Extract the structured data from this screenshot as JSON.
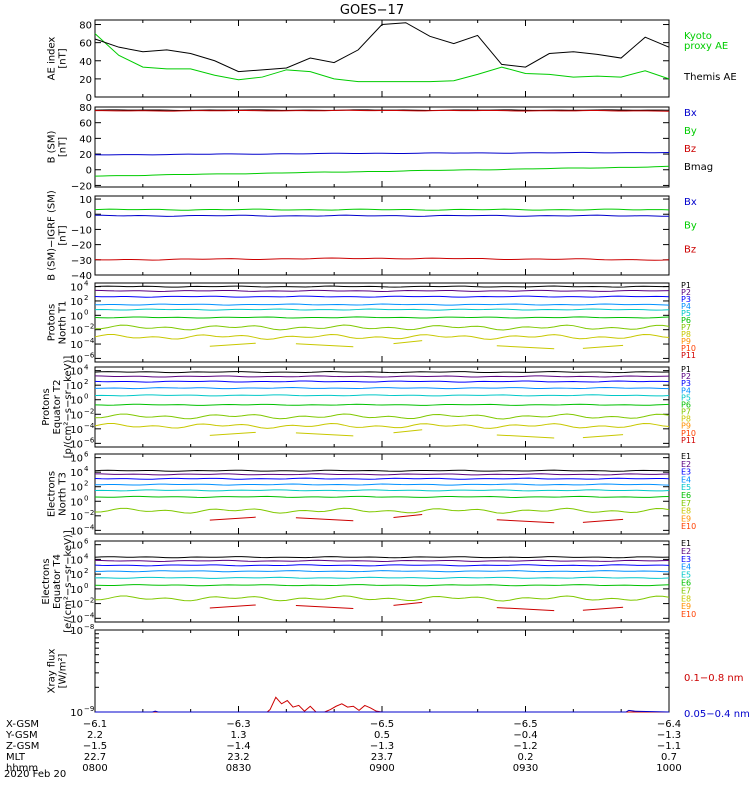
{
  "title": "GOES−17",
  "date_label": "2020 Feb 20",
  "ephemeris": {
    "row_labels": [
      "X-GSM",
      "Y-GSM",
      "Z-GSM",
      "MLT",
      "hhmm"
    ],
    "columns": [
      [
        "−6.1",
        "2.2",
        "−1.5",
        "22.7",
        "0800"
      ],
      [
        "−6.3",
        "1.3",
        "−1.4",
        "23.2",
        "0830"
      ],
      [
        "−6.5",
        "0.5",
        "−1.3",
        "23.7",
        "0900"
      ],
      [
        "−6.5",
        "−0.4",
        "−1.2",
        "0.2",
        "0930"
      ],
      [
        "−6.4",
        "−1.3",
        "−1.1",
        "0.7",
        "1000"
      ]
    ]
  },
  "colors": {
    "black": "#000000",
    "green": "#00cc00",
    "blue": "#0000cc",
    "red": "#cc0000",
    "ch": [
      "#000000",
      "#5a0080",
      "#0000ff",
      "#0090ff",
      "#00c8c8",
      "#00c000",
      "#80c800",
      "#c8c800",
      "#ff9000",
      "#ff4000",
      "#d00000"
    ]
  },
  "chart_data": [
    {
      "type": "line",
      "id": "ae",
      "ylabel": [
        "AE index",
        "[nT]"
      ],
      "yticks": [
        "0",
        "20",
        "40",
        "60",
        "80"
      ],
      "ylim": [
        0,
        85
      ],
      "legend": [
        {
          "label": "Kyoto",
          "color": "#00cc00"
        },
        {
          "label": "proxy AE",
          "color": "#00cc00"
        },
        {
          "label": "Themis AE",
          "color": "#000000"
        }
      ],
      "x_hours": [
        8.0,
        8.083,
        8.167,
        8.25,
        8.333,
        8.417,
        8.5,
        8.583,
        8.667,
        8.75,
        8.833,
        8.917,
        9.0,
        9.083,
        9.167,
        9.25,
        9.333,
        9.417,
        9.5,
        9.583,
        9.667,
        9.75,
        9.833,
        9.917,
        10.0
      ],
      "series": [
        {
          "name": "Kyoto",
          "color": "#00cc00",
          "values": [
            70,
            46,
            33,
            31,
            31,
            24,
            19,
            22,
            30,
            28,
            20,
            17,
            17,
            17,
            17,
            18,
            25,
            33,
            26,
            25,
            22,
            23,
            22,
            29,
            20
          ]
        },
        {
          "name": "Themis AE",
          "color": "#000000",
          "values": [
            64,
            55,
            50,
            52,
            48,
            40,
            28,
            30,
            32,
            43,
            38,
            52,
            80,
            82,
            67,
            59,
            68,
            36,
            33,
            48,
            50,
            47,
            43,
            66,
            55
          ]
        }
      ]
    },
    {
      "type": "line",
      "id": "bsm",
      "ylabel": [
        "B (SM)",
        "[nT]"
      ],
      "yticks": [
        "−20",
        "0",
        "20",
        "40",
        "60",
        "80"
      ],
      "ylim": [
        -22,
        80
      ],
      "legend": [
        {
          "label": "Bx",
          "color": "#0000cc"
        },
        {
          "label": "By",
          "color": "#00cc00"
        },
        {
          "label": "Bz",
          "color": "#cc0000"
        },
        {
          "label": "Bmag",
          "color": "#000000"
        }
      ],
      "series": [
        {
          "name": "Bmag",
          "color": "#000000",
          "values": [
            76,
            76,
            76
          ]
        },
        {
          "name": "Bz",
          "color": "#cc0000",
          "values": [
            75,
            75.5,
            75
          ]
        },
        {
          "name": "Bx",
          "color": "#0000cc",
          "values": [
            19,
            21,
            22
          ]
        },
        {
          "name": "By",
          "color": "#00cc00",
          "values": [
            -8,
            -2,
            4
          ]
        }
      ]
    },
    {
      "type": "line",
      "id": "bigrf",
      "ylabel": [
        "B (SM)−IGRF (SM)",
        "[nT]"
      ],
      "yticks": [
        "−40",
        "−30",
        "−20",
        "−10",
        "0",
        "10"
      ],
      "ylim": [
        -40,
        12
      ],
      "legend": [
        {
          "label": "Bx",
          "color": "#0000cc"
        },
        {
          "label": "By",
          "color": "#00cc00"
        },
        {
          "label": "Bz",
          "color": "#cc0000"
        }
      ],
      "series": [
        {
          "name": "By",
          "color": "#00cc00",
          "values": [
            3,
            3,
            3
          ]
        },
        {
          "name": "Bx",
          "color": "#0000cc",
          "values": [
            -1,
            -1,
            -1
          ]
        },
        {
          "name": "Bz",
          "color": "#cc0000",
          "values": [
            -30,
            -29,
            -30
          ]
        }
      ]
    },
    {
      "type": "line",
      "id": "pt1",
      "ylabel": [
        "Protons",
        "North T1"
      ],
      "yticks_exp": [
        -6,
        -4,
        -2,
        0,
        2,
        4
      ],
      "ylim_log": [
        -6.5,
        4.5
      ],
      "channels": [
        "P1",
        "P2",
        "P3",
        "P4",
        "P5",
        "P6",
        "P7",
        "P8",
        "P9",
        "P10",
        "P11"
      ],
      "levels_log": [
        4.0,
        3.4,
        2.6,
        1.5,
        0.8,
        -0.3,
        -1.7,
        -3.0
      ]
    },
    {
      "type": "line",
      "id": "pt2",
      "ylabel": [
        "Protons",
        "Equator T2",
        "[p/(cm²−s−sr−keV)]"
      ],
      "yticks_exp": [
        -6,
        -4,
        -2,
        0,
        2,
        4
      ],
      "ylim_log": [
        -6.5,
        4.5
      ],
      "channels": [
        "P1",
        "P2",
        "P3",
        "P4",
        "P5",
        "P6",
        "P7",
        "P8",
        "P9",
        "P10",
        "P11"
      ],
      "levels_log": [
        3.8,
        3.2,
        2.5,
        1.6,
        0.6,
        -0.7,
        -2.3,
        -3.6
      ]
    },
    {
      "type": "line",
      "id": "et3",
      "ylabel": [
        "Electrons",
        "North T3"
      ],
      "yticks_exp": [
        -4,
        -2,
        0,
        2,
        4,
        6
      ],
      "ylim_log": [
        -4.5,
        6.5
      ],
      "channels": [
        "E1",
        "E2",
        "E3",
        "E4",
        "E5",
        "E6",
        "E7",
        "E8",
        "E9",
        "E10"
      ],
      "levels_log": [
        4.2,
        3.7,
        3.1,
        2.3,
        1.5,
        0.6,
        -1.3
      ]
    },
    {
      "type": "line",
      "id": "et4",
      "ylabel": [
        "Electrons",
        "Equator T4",
        "[e/(cm²−s−sr−keV)]"
      ],
      "yticks_exp": [
        -4,
        -2,
        0,
        2,
        4,
        6
      ],
      "ylim_log": [
        -4.5,
        6.5
      ],
      "channels": [
        "E1",
        "E2",
        "E3",
        "E4",
        "E5",
        "E6",
        "E7",
        "E8",
        "E9",
        "E10"
      ],
      "levels_log": [
        4.3,
        3.8,
        3.2,
        2.4,
        1.5,
        0.5,
        -1.3
      ]
    },
    {
      "type": "line",
      "id": "xray",
      "ylabel": [
        "Xray flux",
        "[W/m²]"
      ],
      "yticks_exp": [
        -9,
        -8
      ],
      "ylim_log": [
        -9,
        -8
      ],
      "legend": [
        {
          "label": "0.1−0.8 nm",
          "color": "#cc0000"
        },
        {
          "label": "0.05−0.4 nm",
          "color": "#0000cc"
        }
      ],
      "series": [
        {
          "name": "0.1−0.8 nm",
          "color": "#cc0000",
          "x_hours": [
            8.0,
            8.6,
            8.61,
            8.63,
            8.65,
            8.67,
            8.69,
            8.71,
            8.73,
            8.75,
            8.77,
            8.79,
            8.8,
            8.82,
            8.84,
            8.86,
            8.88,
            8.9,
            8.92,
            8.94,
            8.96,
            8.98,
            9.0,
            9.02,
            9.04,
            10.0
          ],
          "values_log": [
            -9,
            -9,
            -8.97,
            -8.82,
            -8.9,
            -8.86,
            -8.94,
            -8.92,
            -8.99,
            -8.93,
            -9,
            -9,
            -9,
            -8.97,
            -8.93,
            -8.9,
            -8.94,
            -8.93,
            -8.98,
            -8.92,
            -8.95,
            -8.99,
            -9,
            -9,
            -9,
            -9
          ]
        },
        {
          "name": "0.05−0.4 nm",
          "color": "#0000cc",
          "x_hours": [
            8.0,
            8.2,
            8.21,
            8.22,
            9.0,
            9.85,
            9.86,
            9.88,
            10.0
          ],
          "values_log": [
            -9,
            -9,
            -8.99,
            -9,
            -9,
            -9,
            -8.98,
            -8.99,
            -9
          ]
        }
      ]
    }
  ]
}
